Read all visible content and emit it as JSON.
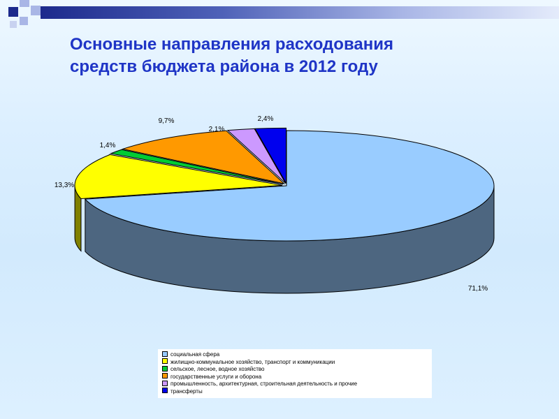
{
  "slide": {
    "title_line1": "Основные направления расходования",
    "title_line2": "средств бюджета района в 2012 году"
  },
  "colors": {
    "title": "#1f35c6",
    "top_bar": "#1c2a8c",
    "corner_dark": "#1c2a8c",
    "corner_light": "#a9b6e6"
  },
  "chart_data": {
    "type": "pie",
    "style": "3d-exploded",
    "legend_position": "bottom",
    "categories": [
      "социальная сфера",
      "жилищно-коммунальное хозяйство, транспорт и коммуникации",
      "сельское, лесное, водное хозяйство",
      "государственные услуги и оборона",
      "промышленность, архитектурная, строительная деятельность и прочие",
      "трансферты"
    ],
    "values": [
      71.1,
      13.3,
      1.4,
      9.7,
      2.1,
      2.4
    ],
    "labels": [
      "71,1%",
      "13,3%",
      "1,4%",
      "9,7%",
      "2,1%",
      "2,4%"
    ],
    "colors": [
      "#99ccff",
      "#ffff00",
      "#00cc33",
      "#ff9900",
      "#cc99ff",
      "#0000ee"
    ]
  }
}
